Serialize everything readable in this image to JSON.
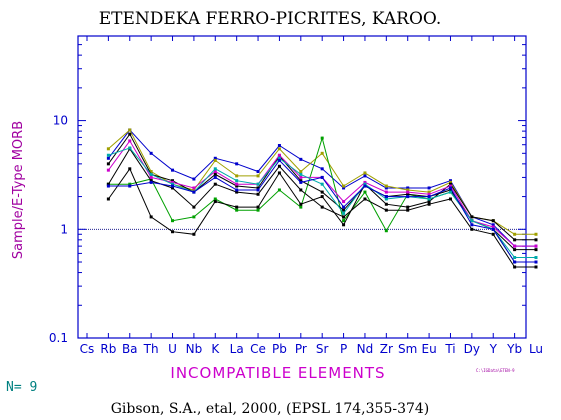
{
  "chart_data": {
    "type": "line",
    "title": "ETENDEKA FERRO-PICRITES, KAROO.",
    "ylabel": "Sample/E-Type MORB",
    "xlabel": "INCOMPATIBLE ELEMENTS",
    "y_scale": "log",
    "ylim": [
      0.1,
      60
    ],
    "y_ticks": [
      {
        "value": 0.1,
        "label": "0.1"
      },
      {
        "value": 1,
        "label": "1"
      },
      {
        "value": 10,
        "label": "10"
      }
    ],
    "reference_line": 1,
    "categories": [
      "Cs",
      "Rb",
      "Ba",
      "Th",
      "U",
      "Nb",
      "K",
      "La",
      "Ce",
      "Pb",
      "Pr",
      "Sr",
      "P",
      "Nd",
      "Zr",
      "Sm",
      "Eu",
      "Ti",
      "Dy",
      "Y",
      "Yb",
      "Lu"
    ],
    "x_tick_labels": [
      "Cs",
      "Rb",
      "Ba",
      "Th",
      "U",
      "Nb",
      "K",
      "La",
      "Ce",
      "Pb",
      "Pr",
      "Sr",
      "P",
      "Nd",
      "Zr",
      "Sm",
      "Eu",
      "Ti",
      "Dy",
      "Y",
      "Yb",
      "Lu"
    ],
    "series": [
      {
        "color": "#0000cc",
        "values": [
          null,
          4.5,
          8.2,
          5.0,
          3.5,
          2.9,
          4.5,
          4.0,
          3.4,
          5.9,
          4.4,
          3.6,
          2.4,
          3.1,
          2.4,
          2.4,
          2.4,
          2.8,
          1.3,
          1.1,
          0.7,
          0.7
        ]
      },
      {
        "color": "#a0a000",
        "values": [
          null,
          5.5,
          8.2,
          3.4,
          2.6,
          2.3,
          4.3,
          3.1,
          3.1,
          5.5,
          3.4,
          5.0,
          2.5,
          3.3,
          2.5,
          2.3,
          2.2,
          2.7,
          1.3,
          1.2,
          0.9,
          0.9
        ]
      },
      {
        "color": "#00a000",
        "values": [
          null,
          2.6,
          2.6,
          2.9,
          1.2,
          1.3,
          1.9,
          1.5,
          1.5,
          2.3,
          1.6,
          6.9,
          1.2,
          2.2,
          0.97,
          2.1,
          1.9,
          2.2,
          1.2,
          1.0,
          0.5,
          0.5
        ]
      },
      {
        "color": "#000000",
        "values": [
          null,
          1.9,
          3.6,
          1.3,
          0.95,
          0.9,
          1.8,
          1.6,
          1.6,
          3.3,
          1.7,
          2.0,
          1.1,
          2.6,
          1.7,
          1.6,
          1.8,
          2.6,
          1.3,
          1.2,
          0.8,
          0.8
        ]
      },
      {
        "color": "#000000",
        "values": [
          null,
          2.6,
          5.5,
          2.8,
          2.4,
          1.6,
          2.6,
          2.2,
          2.1,
          3.8,
          2.3,
          1.6,
          1.3,
          1.9,
          1.5,
          1.5,
          1.7,
          1.9,
          1.0,
          0.9,
          0.45,
          0.45
        ]
      },
      {
        "color": "#000000",
        "values": [
          null,
          4.0,
          7.5,
          3.2,
          2.8,
          2.2,
          3.2,
          2.5,
          2.4,
          4.7,
          2.8,
          2.2,
          1.5,
          2.5,
          2.0,
          2.1,
          2.0,
          2.3,
          1.2,
          1.0,
          0.65,
          0.65
        ]
      },
      {
        "color": "#cc00cc",
        "values": [
          null,
          3.5,
          6.5,
          3.0,
          2.7,
          2.4,
          3.4,
          2.6,
          2.6,
          4.8,
          3.0,
          3.0,
          1.8,
          2.7,
          2.2,
          2.2,
          2.1,
          2.5,
          1.2,
          1.05,
          0.7,
          0.7
        ]
      },
      {
        "color": "#00aaaa",
        "values": [
          null,
          4.8,
          5.6,
          3.2,
          2.6,
          2.2,
          3.6,
          2.8,
          2.6,
          4.5,
          3.2,
          2.6,
          1.4,
          2.6,
          1.9,
          2.0,
          1.9,
          2.2,
          1.2,
          1.0,
          0.55,
          0.55
        ]
      },
      {
        "color": "#0000cc",
        "values": [
          null,
          2.5,
          2.5,
          2.7,
          2.5,
          2.2,
          3.0,
          2.3,
          2.3,
          4.3,
          2.7,
          3.0,
          1.6,
          2.5,
          2.0,
          2.0,
          2.0,
          2.4,
          1.1,
          1.0,
          0.5,
          0.5
        ]
      }
    ]
  },
  "footer": {
    "n_label": "N= 9",
    "citation": "Gibson, S.A., etal, 2000, (EPSL 174,355-374)",
    "file_path": "C:\\IGData\\ETEN-9"
  },
  "colors": {
    "frame": "#0000cc",
    "axis_label": "#a000a0",
    "tick_label": "#0000cc",
    "n_label": "#008080",
    "reference_line": "#000080",
    "title": "#000000"
  }
}
